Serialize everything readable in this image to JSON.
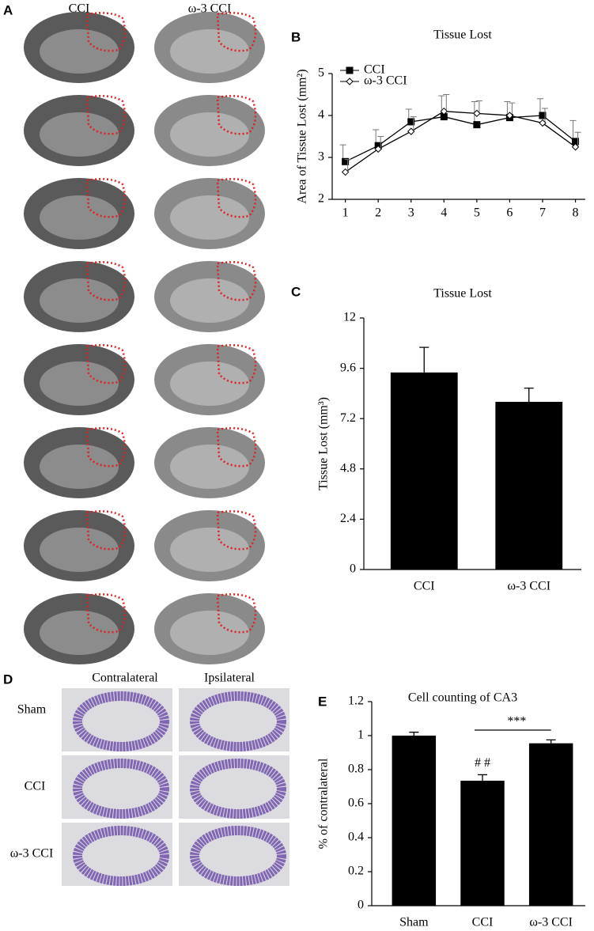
{
  "panel_letters": [
    "A",
    "B",
    "C",
    "D",
    "E"
  ],
  "panel_a": {
    "columns": [
      "CCI",
      "ω-3 CCI"
    ]
  },
  "panel_d": {
    "columns": [
      "Contralateral",
      "Ipsilateral"
    ],
    "rows": [
      "Sham",
      "CCI",
      "ω-3 CCI"
    ]
  },
  "chart_data": [
    {
      "type": "line",
      "title": "Tissue Lost",
      "y_label": "Area of Tissue Lost (mm²)",
      "x": [
        1,
        2,
        3,
        4,
        5,
        6,
        7,
        8
      ],
      "xlim": [
        0.6,
        8.3
      ],
      "xticks": [
        1,
        2,
        3,
        4,
        5,
        6,
        7,
        8
      ],
      "ylim": [
        2,
        5
      ],
      "yticks": [
        2,
        3,
        4,
        5
      ],
      "legend": "top-left",
      "series": [
        {
          "name": "CCI",
          "color": "#000000",
          "marker": "square",
          "marker_fill": "#000000",
          "values": [
            2.9,
            3.28,
            3.85,
            3.97,
            3.78,
            3.95,
            4.0,
            3.38
          ],
          "errors": [
            0.4,
            0.38,
            0.3,
            0.5,
            0.55,
            0.38,
            0.4,
            0.5
          ]
        },
        {
          "name": "ω-3 CCI",
          "color": "#000000",
          "marker": "diamond",
          "marker_fill": "#ffffff",
          "values": [
            2.65,
            3.2,
            3.62,
            4.1,
            4.05,
            4.0,
            3.82,
            3.25
          ],
          "errors": [
            0.3,
            0.3,
            0.35,
            0.4,
            0.3,
            0.3,
            0.35,
            0.35
          ]
        }
      ]
    },
    {
      "type": "bar",
      "title": "Tissue Lost",
      "y_label": "Tissue Lost (mm³)",
      "categories": [
        "CCI",
        "ω-3 CCI"
      ],
      "values": [
        9.4,
        8.0
      ],
      "errors": [
        1.2,
        0.65
      ],
      "color": "#000000",
      "ylim": [
        0,
        12
      ],
      "yticks": [
        0,
        2.4,
        4.8,
        7.2,
        9.6,
        12
      ]
    },
    {
      "type": "bar",
      "title": "Cell counting of  CA3",
      "y_label": "% of  contralateral",
      "categories": [
        "Sham",
        "CCI",
        "ω-3 CCI"
      ],
      "values": [
        1.0,
        0.735,
        0.955
      ],
      "errors": [
        0.02,
        0.035,
        0.02
      ],
      "color": "#000000",
      "ylim": [
        0,
        1.2
      ],
      "yticks": [
        0,
        0.2,
        0.4,
        0.6,
        0.8,
        1,
        1.2
      ],
      "annotations": [
        "# #",
        "***"
      ]
    }
  ]
}
